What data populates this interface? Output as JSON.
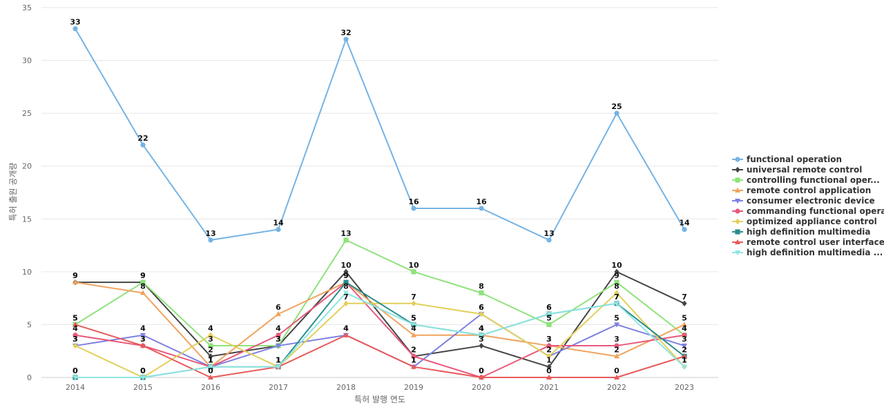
{
  "chart_data": {
    "type": "line",
    "title": "",
    "xlabel": "특허 발행 연도",
    "ylabel": "특허 출원 공개량",
    "x": [
      "2014",
      "2015",
      "2016",
      "2017",
      "2018",
      "2019",
      "2020",
      "2021",
      "2022",
      "2023"
    ],
    "ylim": [
      0,
      35
    ],
    "yticks": [
      0,
      5,
      10,
      15,
      20,
      25,
      30,
      35
    ],
    "grid": true,
    "legend_position": "right",
    "series": [
      {
        "name": "functional operation",
        "color": "#74b3e4",
        "marker": "circle",
        "values": [
          33,
          22,
          13,
          14,
          32,
          16,
          16,
          13,
          25,
          14
        ]
      },
      {
        "name": "universal remote control",
        "color": "#444444",
        "marker": "diamond",
        "values": [
          9,
          9,
          2,
          3,
          10,
          2,
          3,
          1,
          10,
          7
        ]
      },
      {
        "name": "controlling functional oper...",
        "color": "#8ee27a",
        "marker": "square",
        "values": [
          5,
          9,
          3,
          3,
          13,
          10,
          8,
          5,
          9,
          4
        ]
      },
      {
        "name": "remote control application",
        "color": "#f0a35e",
        "marker": "triangle",
        "values": [
          9,
          8,
          1,
          6,
          9,
          4,
          4,
          3,
          2,
          5
        ]
      },
      {
        "name": "consumer electronic device",
        "color": "#7d80e0",
        "marker": "triangle-down",
        "values": [
          3,
          4,
          1,
          3,
          4,
          1,
          6,
          2,
          5,
          3
        ]
      },
      {
        "name": "commanding functional opera...",
        "color": "#e8587a",
        "marker": "circle",
        "values": [
          4,
          3,
          1,
          4,
          9,
          2,
          0,
          3,
          3,
          4
        ]
      },
      {
        "name": "optimized appliance control",
        "color": "#e2cf5a",
        "marker": "diamond",
        "values": [
          3,
          0,
          4,
          1,
          7,
          7,
          6,
          2,
          8,
          1
        ]
      },
      {
        "name": "high definition multimedia",
        "color": "#2a8e8a",
        "marker": "square",
        "values": [
          0,
          0,
          1,
          1,
          9,
          5,
          4,
          6,
          7,
          2
        ]
      },
      {
        "name": "remote control user interface",
        "color": "#e85a5a",
        "marker": "triangle",
        "values": [
          5,
          3,
          0,
          1,
          4,
          1,
          0,
          0,
          0,
          2
        ]
      },
      {
        "name": "high definition multimedia ...",
        "color": "#8fe5e2",
        "marker": "triangle-down",
        "values": [
          0,
          0,
          1,
          1,
          8,
          5,
          4,
          6,
          7,
          1
        ]
      }
    ]
  }
}
